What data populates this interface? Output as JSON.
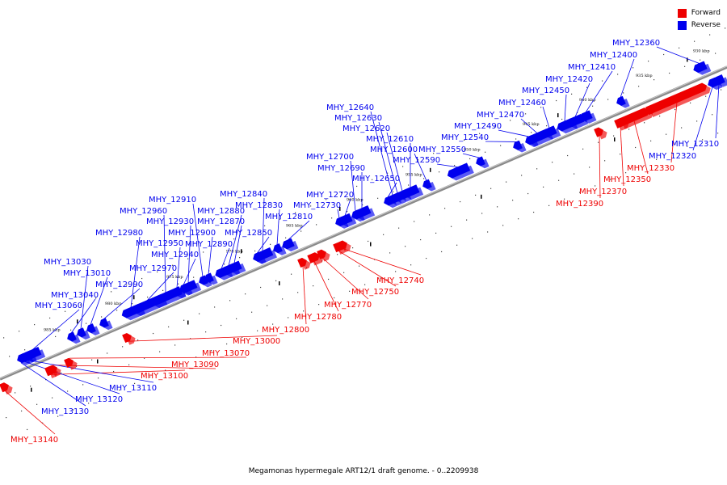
{
  "colors": {
    "forward": "#ee0000",
    "reverse": "#0000ee",
    "axis": "#707070"
  },
  "legend": {
    "forward_label": "Forward",
    "reverse_label": "Reverse"
  },
  "caption": "Megamonas hypermegale ART12/1 draft genome. - 0..2209938",
  "ticks": [
    "930 kbp",
    "935 kbp",
    "940 kbp",
    "945 kbp",
    "950 kbp",
    "955 kbp",
    "960 kbp",
    "965 kbp",
    "970 kbp",
    "975 kbp",
    "980 kbp",
    "985 kbp"
  ],
  "genes": [
    {
      "name": "MHY_12310",
      "strand": "reverse"
    },
    {
      "name": "MHY_12320",
      "strand": "reverse"
    },
    {
      "name": "MHY_12330",
      "strand": "forward"
    },
    {
      "name": "MHY_12350",
      "strand": "forward"
    },
    {
      "name": "MHY_12360",
      "strand": "reverse"
    },
    {
      "name": "MHY_12370",
      "strand": "forward"
    },
    {
      "name": "MHY_12390",
      "strand": "forward"
    },
    {
      "name": "MHY_12400",
      "strand": "reverse"
    },
    {
      "name": "MHY_12410",
      "strand": "reverse"
    },
    {
      "name": "MHY_12420",
      "strand": "reverse"
    },
    {
      "name": "MHY_12450",
      "strand": "reverse"
    },
    {
      "name": "MHY_12460",
      "strand": "reverse"
    },
    {
      "name": "MHY_12470",
      "strand": "reverse"
    },
    {
      "name": "MHY_12490",
      "strand": "reverse"
    },
    {
      "name": "MHY_12540",
      "strand": "reverse"
    },
    {
      "name": "MHY_12550",
      "strand": "reverse"
    },
    {
      "name": "MHY_12590",
      "strand": "reverse"
    },
    {
      "name": "MHY_12600",
      "strand": "reverse"
    },
    {
      "name": "MHY_12610",
      "strand": "reverse"
    },
    {
      "name": "MHY_12620",
      "strand": "reverse"
    },
    {
      "name": "MHY_12630",
      "strand": "reverse"
    },
    {
      "name": "MHY_12640",
      "strand": "reverse"
    },
    {
      "name": "MHY_12650",
      "strand": "reverse"
    },
    {
      "name": "MHY_12690",
      "strand": "reverse"
    },
    {
      "name": "MHY_12700",
      "strand": "reverse"
    },
    {
      "name": "MHY_12720",
      "strand": "reverse"
    },
    {
      "name": "MHY_12730",
      "strand": "reverse"
    },
    {
      "name": "MHY_12740",
      "strand": "forward"
    },
    {
      "name": "MHY_12750",
      "strand": "forward"
    },
    {
      "name": "MHY_12770",
      "strand": "forward"
    },
    {
      "name": "MHY_12780",
      "strand": "forward"
    },
    {
      "name": "MHY_12800",
      "strand": "forward"
    },
    {
      "name": "MHY_12810",
      "strand": "reverse"
    },
    {
      "name": "MHY_12830",
      "strand": "reverse"
    },
    {
      "name": "MHY_12840",
      "strand": "reverse"
    },
    {
      "name": "MHY_12850",
      "strand": "reverse"
    },
    {
      "name": "MHY_12870",
      "strand": "reverse"
    },
    {
      "name": "MHY_12880",
      "strand": "reverse"
    },
    {
      "name": "MHY_12890",
      "strand": "reverse"
    },
    {
      "name": "MHY_12900",
      "strand": "reverse"
    },
    {
      "name": "MHY_12910",
      "strand": "reverse"
    },
    {
      "name": "MHY_12930",
      "strand": "reverse"
    },
    {
      "name": "MHY_12940",
      "strand": "reverse"
    },
    {
      "name": "MHY_12950",
      "strand": "reverse"
    },
    {
      "name": "MHY_12960",
      "strand": "reverse"
    },
    {
      "name": "MHY_12970",
      "strand": "reverse"
    },
    {
      "name": "MHY_12980",
      "strand": "reverse"
    },
    {
      "name": "MHY_12990",
      "strand": "reverse"
    },
    {
      "name": "MHY_13000",
      "strand": "forward"
    },
    {
      "name": "MHY_13010",
      "strand": "reverse"
    },
    {
      "name": "MHY_13030",
      "strand": "reverse"
    },
    {
      "name": "MHY_13040",
      "strand": "reverse"
    },
    {
      "name": "MHY_13060",
      "strand": "reverse"
    },
    {
      "name": "MHY_13070",
      "strand": "forward"
    },
    {
      "name": "MHY_13090",
      "strand": "forward"
    },
    {
      "name": "MHY_13100",
      "strand": "forward"
    },
    {
      "name": "MHY_13110",
      "strand": "reverse"
    },
    {
      "name": "MHY_13120",
      "strand": "reverse"
    },
    {
      "name": "MHY_13130",
      "strand": "reverse"
    },
    {
      "name": "MHY_13140",
      "strand": "forward"
    }
  ]
}
